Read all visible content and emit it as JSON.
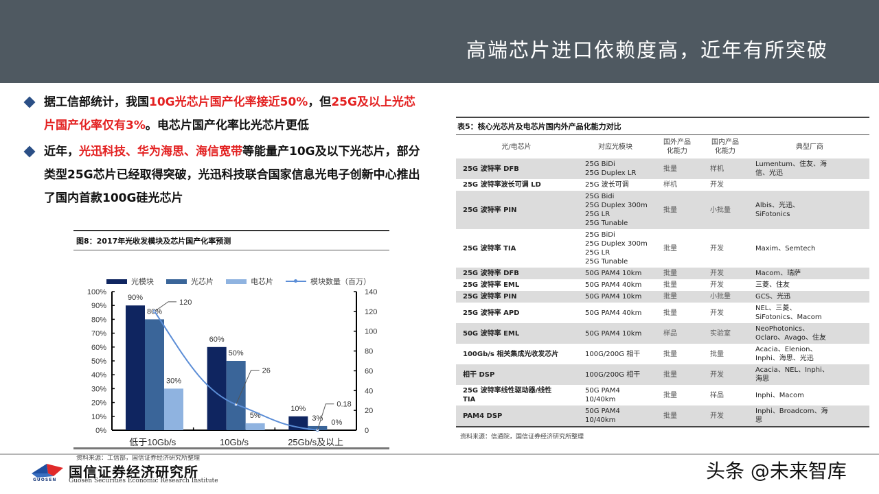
{
  "header": {
    "title": "高端芯片进口依赖度高，近年有所突破"
  },
  "bullets": [
    {
      "segments": [
        {
          "text": "据工信部统计，我国",
          "red": false
        },
        {
          "text": "10G光芯片国产化率接近50%",
          "red": true
        },
        {
          "text": "，但",
          "red": false
        },
        {
          "text": "25G及以上光芯片国产化率仅有3%",
          "red": true
        },
        {
          "text": "。电芯片国产化率比光芯片更低",
          "red": false
        }
      ]
    },
    {
      "segments": [
        {
          "text": "近年，",
          "red": false
        },
        {
          "text": "光迅科技、华为海思、海信宽带",
          "red": true
        },
        {
          "text": "等能量产10G及以下光芯片，部分类型25G芯片已经取得突破，光迅科技联合国家信息光电子创新中心推出了国内首款100G硅光芯片",
          "red": false
        }
      ]
    }
  ],
  "figure": {
    "title": "图8：2017年光收发模块及芯片国产化率预测",
    "source": "资料来源：工信部，国信证券经济研究所整理"
  },
  "colors": {
    "header_bg": "#4f5961",
    "accent_red": "#e32020",
    "bullet_blue": "#2b4f86",
    "series_optical_module": "#0f2560",
    "series_optical_chip": "#3a6599",
    "series_electrical_chip": "#8fb3e0",
    "series_line": "#5b8dd6"
  },
  "chart_data": {
    "type": "bar",
    "title": "2017年光收发模块及芯片国产化率预测",
    "categories": [
      "低于10Gb/s",
      "10Gb/s",
      "25Gb/s及以上"
    ],
    "series": [
      {
        "name": "光模块",
        "type": "bar",
        "axis": "left",
        "values": [
          90,
          60,
          10
        ],
        "labels": [
          "90%",
          "60%",
          "10%"
        ]
      },
      {
        "name": "光芯片",
        "type": "bar",
        "axis": "left",
        "values": [
          80,
          50,
          3
        ],
        "labels": [
          "80%",
          "50%",
          "3%"
        ]
      },
      {
        "name": "电芯片",
        "type": "bar",
        "axis": "left",
        "values": [
          30,
          5,
          0
        ],
        "labels": [
          "30%",
          "5%",
          "0%"
        ]
      },
      {
        "name": "模块数量（百万）",
        "type": "line",
        "axis": "right",
        "values": [
          120,
          26,
          0.18
        ],
        "labels": [
          "120",
          "26",
          "0.18"
        ]
      }
    ],
    "y_left": {
      "min": 0,
      "max": 100,
      "ticks": [
        "0%",
        "10%",
        "20%",
        "30%",
        "40%",
        "50%",
        "60%",
        "70%",
        "80%",
        "90%",
        "100%"
      ]
    },
    "y_right": {
      "min": 0,
      "max": 140,
      "ticks": [
        "0",
        "20",
        "40",
        "60",
        "80",
        "100",
        "120",
        "140"
      ]
    },
    "legend": [
      "光模块",
      "光芯片",
      "电芯片",
      "模块数量（百万）"
    ],
    "legend_position": "top",
    "grid": false,
    "xlabel": "",
    "ylabel": ""
  },
  "table": {
    "title": "表5：核心光芯片及电芯片国内外产品化能力对比",
    "headers": [
      "光/电芯片",
      "对应光模块",
      "国外产品\n化能力",
      "国内产品\n化能力",
      "典型厂商"
    ],
    "rows": [
      {
        "chip": "25G 波特率 DFB",
        "module": "25G BiDi\n25G Duplex LR",
        "foreign": "批量",
        "domestic": "样机",
        "vendors": "Lumentum、住友、海\n信、光迅",
        "shade": true
      },
      {
        "chip": "25G 波特率波长可调 LD",
        "module": "25G 波长可调",
        "foreign": "样机",
        "domestic": "开发",
        "vendors": "",
        "shade": false
      },
      {
        "chip": "25G 波特率 PIN",
        "module": "25G Bidi\n25G Duplex 300m\n25G LR\n25G Tunable",
        "foreign": "批量",
        "domestic": "小批量",
        "vendors": "Albis、光迅、\nSiFotonics",
        "shade": true
      },
      {
        "chip": "25G 波特率 TIA",
        "module": "25G BiDi\n25G Duplex 300m\n25G LR\n25G Tunable",
        "foreign": "批量",
        "domestic": "开发",
        "vendors": "Maxim、Semtech",
        "shade": false
      },
      {
        "chip": "25G 波特率 DFB",
        "module": "50G PAM4 10km",
        "foreign": "批量",
        "domestic": "开发",
        "vendors": "Macom、瑞萨",
        "shade": true
      },
      {
        "chip": "25G 波特率 EML",
        "module": "50G PAM4 40km",
        "foreign": "批量",
        "domestic": "开发",
        "vendors": "三菱、住友",
        "shade": false
      },
      {
        "chip": "25G 波特率 PIN",
        "module": "50G PAM4 10km",
        "foreign": "批量",
        "domestic": "小批量",
        "vendors": "GCS、光迅",
        "shade": true
      },
      {
        "chip": "25G 波特率 APD",
        "module": "50G PAM4 40km",
        "foreign": "批量",
        "domestic": "开发",
        "vendors": "NEL、三菱、\nSiFotonics、Macom",
        "shade": false
      },
      {
        "chip": "50G 波特率 EML",
        "module": "50G PAM4 10km",
        "foreign": "样品",
        "domestic": "实验室",
        "vendors": "NeoPhotonics、\nOclaro、Avago、住友",
        "shade": true
      },
      {
        "chip": "100Gb/s 相关集成光收发芯片",
        "module": "100G/200G 相干",
        "foreign": "批量",
        "domestic": "批量",
        "vendors": "Acacia、Elenion、\nInphi、海思、光迅",
        "shade": false
      },
      {
        "chip": "相干 DSP",
        "module": "100G/200G 相干",
        "foreign": "批量",
        "domestic": "开发",
        "vendors": "Acacia、NEL、Inphi、\n海思",
        "shade": true
      },
      {
        "chip": "25G 波特率线性驱动器/线性\nTIA",
        "module": "50G PAM4\n10/40km",
        "foreign": "批量",
        "domestic": "样品",
        "vendors": "Inphi、Macom",
        "shade": false
      },
      {
        "chip": "PAM4 DSP",
        "module": "50G PAM4\n10/40km",
        "foreign": "批量",
        "domestic": "开发",
        "vendors": "Inphi、Broadcom、海\n思",
        "shade": true
      }
    ],
    "source": "资料来源：信通院，国信证券经济研究所整理"
  },
  "footer": {
    "logo_text": "GUOSEN",
    "org_cn": "国信证券经济研究所",
    "org_en": "Guosen Securities Economic Research Institute",
    "watermark": "头条 @未来智库"
  }
}
